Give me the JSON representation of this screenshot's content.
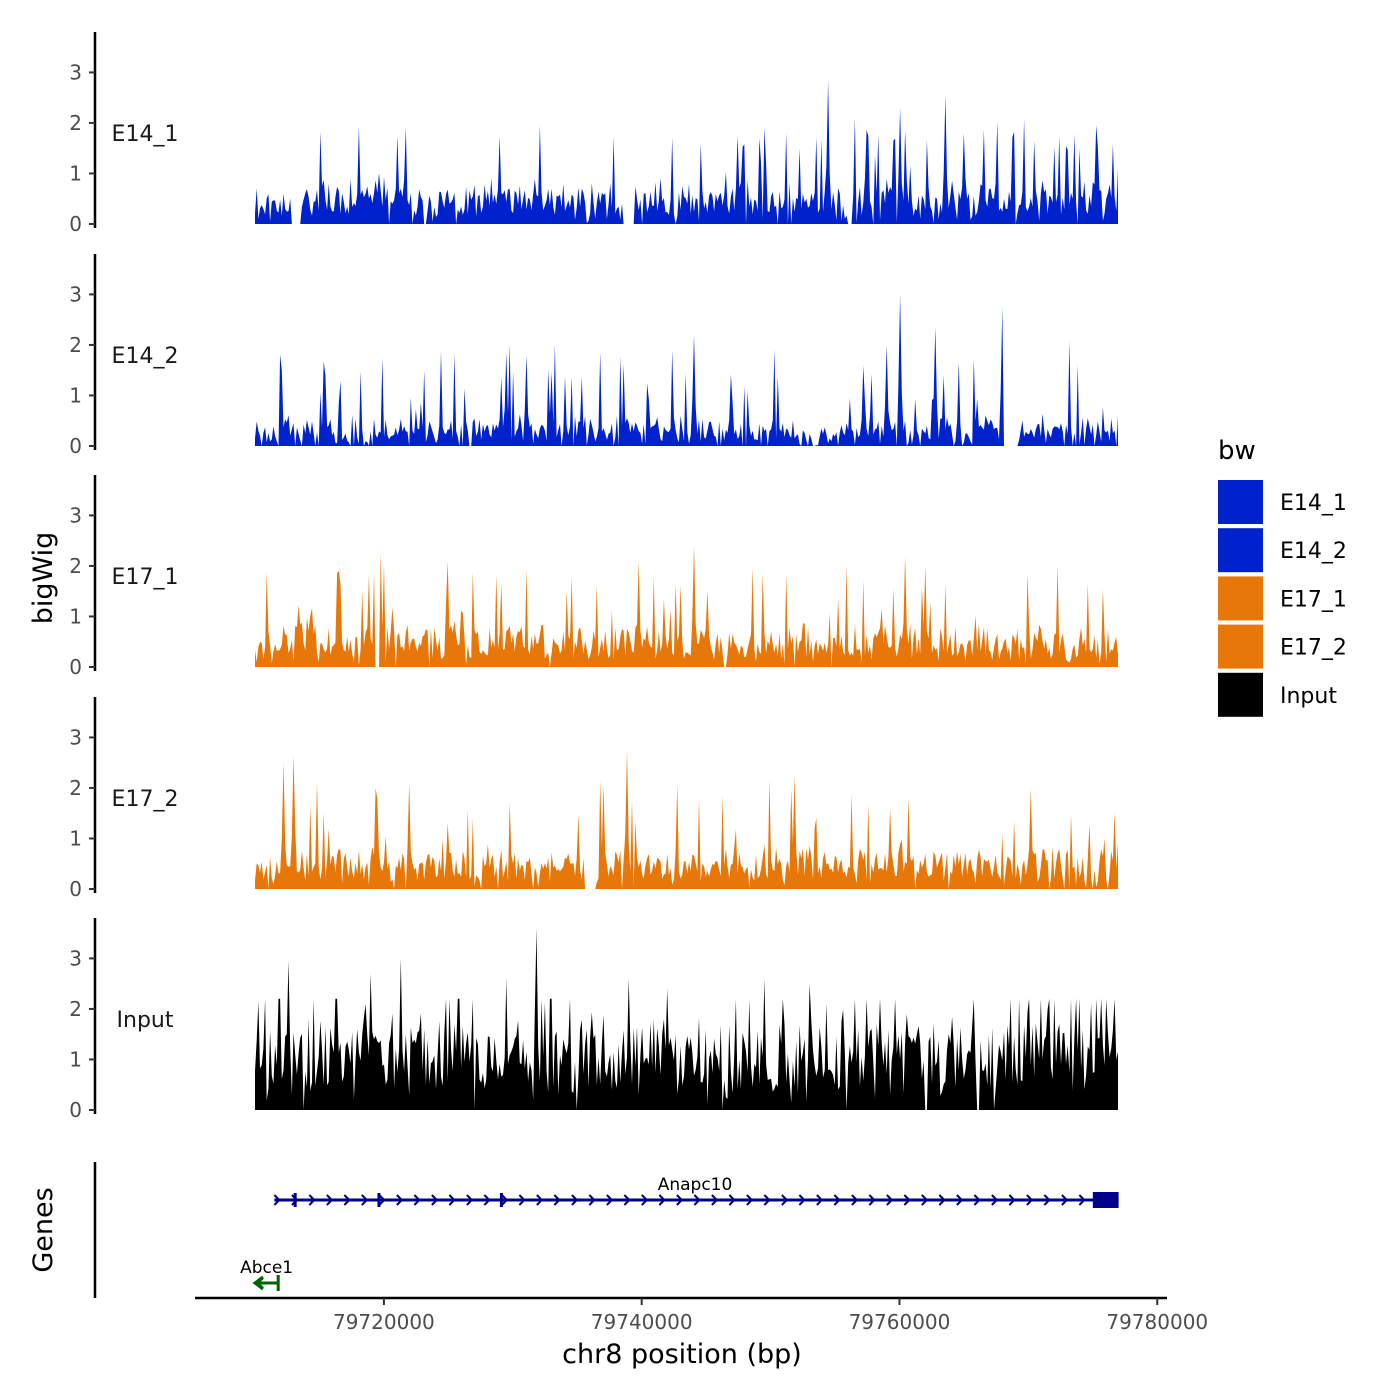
{
  "chart_data": {
    "type": "area",
    "ylabel": "bigWig",
    "xlabel": "chr8 position (bp)",
    "x_ticks": [
      "79720000",
      "79740000",
      "79760000",
      "79780000"
    ],
    "xlim": [
      79705500,
      79780600
    ],
    "region": [
      79710000,
      79777000
    ],
    "ylim": [
      0,
      3.8
    ],
    "y_ticks": [
      "0",
      "1",
      "2",
      "3"
    ],
    "legend": {
      "title": "bw",
      "items": [
        {
          "label": "E14_1",
          "color": "#0022cc"
        },
        {
          "label": "E14_2",
          "color": "#0022cc"
        },
        {
          "label": "E17_1",
          "color": "#e8770a"
        },
        {
          "label": "E17_2",
          "color": "#e8770a"
        },
        {
          "label": "Input",
          "color": "#000000"
        }
      ]
    },
    "tracks": [
      {
        "name": "E14_1",
        "color": "#0022cc",
        "seed": 11,
        "base": 0.45,
        "noise": 0.35,
        "peak_prob": 0.08,
        "gap_prob": 0.015,
        "peaks": [
          [
            79754500,
            2.85
          ],
          [
            79763500,
            2.55
          ],
          [
            79760000,
            2.3
          ],
          [
            79775200,
            1.95
          ],
          [
            79721000,
            1.75
          ],
          [
            79729000,
            1.75
          ],
          [
            79747500,
            1.75
          ],
          [
            79759500,
            1.65
          ],
          [
            79765000,
            1.8
          ]
        ],
        "gaps": [
          [
            79712800,
            79713600
          ],
          [
            79738600,
            79739400
          ],
          [
            79756000,
            79756300
          ]
        ]
      },
      {
        "name": "E14_2",
        "color": "#0022cc",
        "seed": 23,
        "base": 0.3,
        "noise": 0.3,
        "peak_prob": 0.1,
        "gap_prob": 0.05,
        "peaks": [
          [
            79760000,
            3.0
          ],
          [
            79768000,
            2.75
          ],
          [
            79762800,
            2.35
          ],
          [
            79744000,
            2.2
          ],
          [
            79759000,
            2.0
          ],
          [
            79729500,
            1.85
          ],
          [
            79731000,
            1.8
          ]
        ],
        "gaps": [
          [
            79768000,
            79769200
          ]
        ]
      },
      {
        "name": "E17_1",
        "color": "#e8770a",
        "seed": 37,
        "base": 0.45,
        "noise": 0.3,
        "peak_prob": 0.09,
        "gap_prob": 0.012,
        "peaks": [
          [
            79744000,
            2.42
          ],
          [
            79719800,
            2.25
          ],
          [
            79760500,
            2.2
          ],
          [
            79739800,
            2.1
          ],
          [
            79725000,
            2.1
          ],
          [
            79762000,
            2.0
          ],
          [
            79716500,
            1.9
          ]
        ],
        "gaps": [
          [
            79719300,
            79719700
          ]
        ]
      },
      {
        "name": "E17_2",
        "color": "#e8770a",
        "seed": 53,
        "base": 0.45,
        "noise": 0.3,
        "peak_prob": 0.09,
        "gap_prob": 0.03,
        "peaks": [
          [
            79738800,
            2.75
          ],
          [
            79713000,
            2.65
          ],
          [
            79712200,
            2.5
          ],
          [
            79751800,
            2.25
          ],
          [
            79737000,
            2.05
          ],
          [
            79722000,
            2.1
          ],
          [
            79770200,
            2.0
          ]
        ],
        "gaps": [
          [
            79735500,
            79736300
          ]
        ]
      },
      {
        "name": "Input",
        "color": "#000000",
        "seed": 71,
        "base": 1.0,
        "noise": 0.45,
        "peak_prob": 0.13,
        "gap_prob": 0.01,
        "peaks": [
          [
            79731800,
            3.6
          ],
          [
            79712600,
            2.95
          ],
          [
            79721300,
            3.0
          ],
          [
            79719000,
            2.7
          ],
          [
            79729500,
            2.6
          ],
          [
            79739000,
            2.6
          ],
          [
            79749500,
            2.6
          ],
          [
            79753000,
            2.5
          ],
          [
            79742000,
            2.4
          ]
        ],
        "gaps": [
          [
            79762000,
            79762200
          ],
          [
            79766000,
            79766200
          ]
        ]
      }
    ],
    "genes_track": {
      "label": "Genes",
      "genes": [
        {
          "name": "Anapc10",
          "start": 79711500,
          "end": 79777000,
          "strand": "+",
          "color": "#00008b",
          "exons": [
            [
              79713000,
              79713200
            ],
            [
              79719500,
              79719700
            ],
            [
              79729000,
              79729200
            ],
            [
              79775000,
              79777000
            ]
          ]
        },
        {
          "name": "Abce1",
          "start": 79710000,
          "end": 79711800,
          "strand": "-",
          "color": "#006400",
          "exons": []
        }
      ]
    }
  }
}
